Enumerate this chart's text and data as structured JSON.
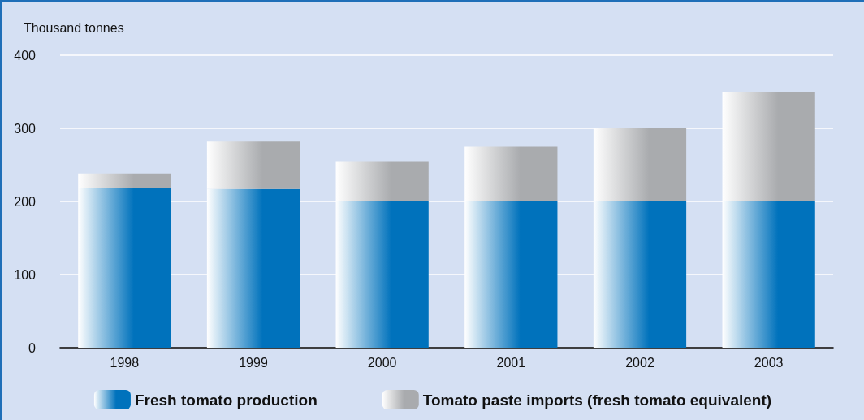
{
  "chart_data": {
    "type": "bar",
    "ylabel": "Thousand tonnes",
    "categories": [
      "1998",
      "1999",
      "2000",
      "2001",
      "2002",
      "2003"
    ],
    "series": [
      {
        "name": "Fresh tomato production",
        "color": "#0072bc",
        "values": [
          218,
          217,
          200,
          200,
          200,
          200
        ]
      },
      {
        "name": "Tomato paste imports (fresh tomato equivalent)",
        "color": "#a9abae",
        "values": [
          20,
          65,
          55,
          75,
          100,
          150
        ]
      }
    ],
    "stacked": true,
    "ylim": [
      0,
      400
    ],
    "yticks": [
      0,
      100,
      200,
      300,
      400
    ],
    "grid": "y",
    "legend": "bottom"
  }
}
